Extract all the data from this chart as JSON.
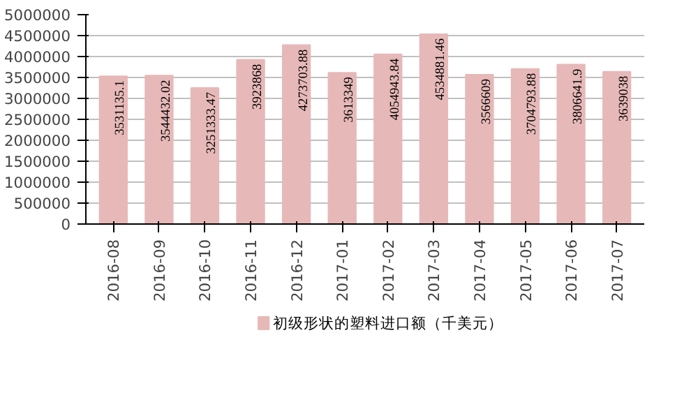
{
  "chart_data": {
    "type": "bar",
    "categories": [
      "2016-08",
      "2016-09",
      "2016-10",
      "2016-11",
      "2016-12",
      "2017-01",
      "2017-02",
      "2017-03",
      "2017-04",
      "2017-05",
      "2017-06",
      "2017-07"
    ],
    "series": [
      {
        "name": "初级形状的塑料进口额（千美元）",
        "color": "#e6b9b8",
        "values": [
          3531135.1,
          3544432.02,
          3251333.47,
          3923868,
          4273703.88,
          3613349,
          4054943.84,
          4534881.46,
          3566609,
          3704793.88,
          3806641.9,
          3639038
        ]
      }
    ],
    "ylim": [
      0,
      5000000
    ],
    "yticks": [
      0,
      500000,
      1000000,
      1500000,
      2000000,
      2500000,
      3000000,
      3500000,
      4000000,
      4500000,
      5000000
    ],
    "grid": "y",
    "legend": "bottom",
    "data_labels": true
  }
}
